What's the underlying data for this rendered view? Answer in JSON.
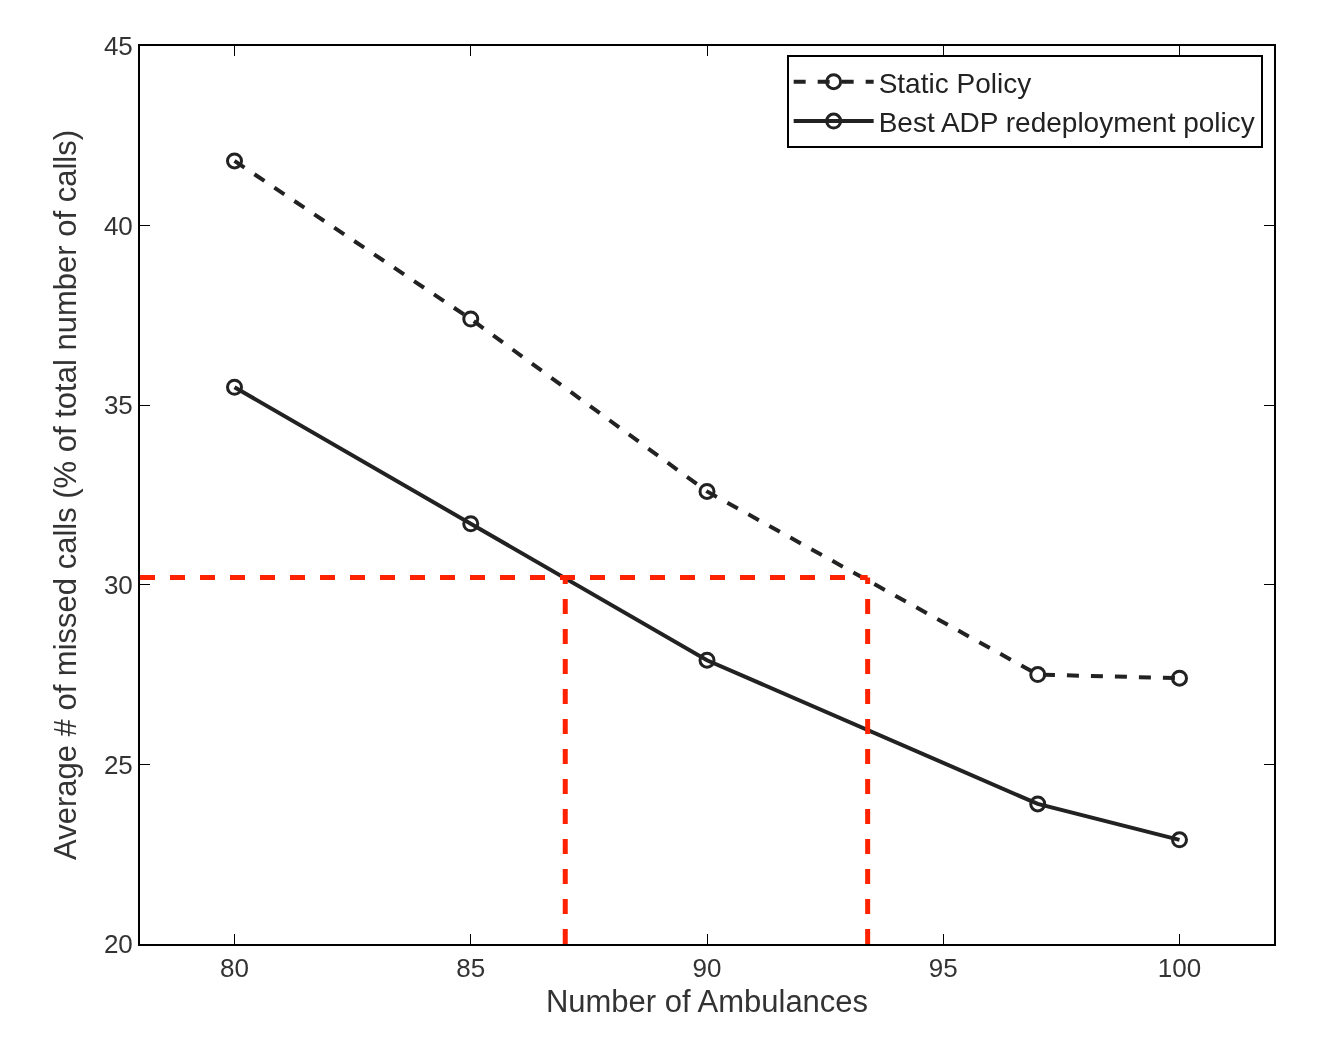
{
  "chart_data": {
    "type": "line",
    "xlabel": "Number of Ambulances",
    "ylabel": "Average # of missed calls (% of total number of calls)",
    "x": [
      80,
      85,
      90,
      97,
      100
    ],
    "series": [
      {
        "name": "Static Policy",
        "color": "#222222",
        "line_style": "dashed",
        "values": [
          41.8,
          37.4,
          32.6,
          27.5,
          27.4
        ]
      },
      {
        "name": "Best ADP redeployment policy",
        "color": "#222222",
        "line_style": "solid",
        "values": [
          35.5,
          31.7,
          27.9,
          23.9,
          22.9
        ]
      }
    ],
    "xlim": [
      78,
      102
    ],
    "xticks": [
      80,
      85,
      90,
      95,
      100
    ],
    "ylim": [
      20,
      45
    ],
    "yticks": [
      20,
      25,
      30,
      35,
      40,
      45
    ],
    "ref_lines": [
      {
        "axis": "y",
        "value": 30.2,
        "color": "#ff2200",
        "line_style": "dashed"
      },
      {
        "axis": "x",
        "value": 87,
        "color": "#ff2200",
        "line_style": "dashed"
      },
      {
        "axis": "x",
        "value": 93.4,
        "color": "#ff2200",
        "line_style": "dashed"
      }
    ],
    "marker": "circle",
    "grid": false,
    "legend": "top right"
  }
}
